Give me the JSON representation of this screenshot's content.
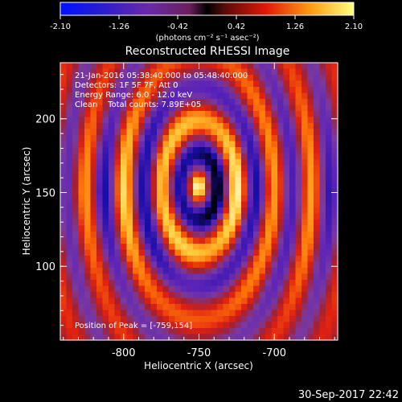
{
  "chart_data": {
    "type": "heatmap",
    "title": "Reconstructed RHESSI Image",
    "xlabel": "Heliocentric X (arcsec)",
    "ylabel": "Heliocentric Y (arcsec)",
    "xlim": [
      -842,
      -658
    ],
    "ylim": [
      50,
      238
    ],
    "x_ticks": [
      "-800",
      "-750",
      "-700"
    ],
    "x_tick_values": [
      -800,
      -750,
      -700
    ],
    "y_ticks": [
      "100",
      "150",
      "200"
    ],
    "y_tick_values": [
      100,
      150,
      200
    ],
    "colorbar": {
      "ticks": [
        "-2.10",
        "-1.26",
        "-0.42",
        "0.42",
        "1.26",
        "2.10"
      ],
      "values": [
        -2.1,
        -1.26,
        -0.42,
        0.42,
        1.26,
        2.1
      ],
      "units": "(photons cm⁻² s⁻¹ asec⁻²)"
    },
    "annotations": [
      "21-Jan-2016 05:38:40.000 to 05:48:40.000",
      "Detectors: 1F 5F 7F, Att 0",
      "Energy Range: 6.0 - 12.0 keV",
      "Clean    Total counts: 7.89E+05"
    ],
    "peak_label": "Position of Peak = [-759,154]",
    "peak": [
      -759,
      154
    ],
    "timestamp": "30-Sep-2017 22:42",
    "colormap": [
      "#000000",
      "#1a0ea8",
      "#5a22b8",
      "#7a3aa0",
      "#a22030",
      "#e02010",
      "#ff7a08",
      "#ffd040",
      "#ffffd8"
    ]
  }
}
